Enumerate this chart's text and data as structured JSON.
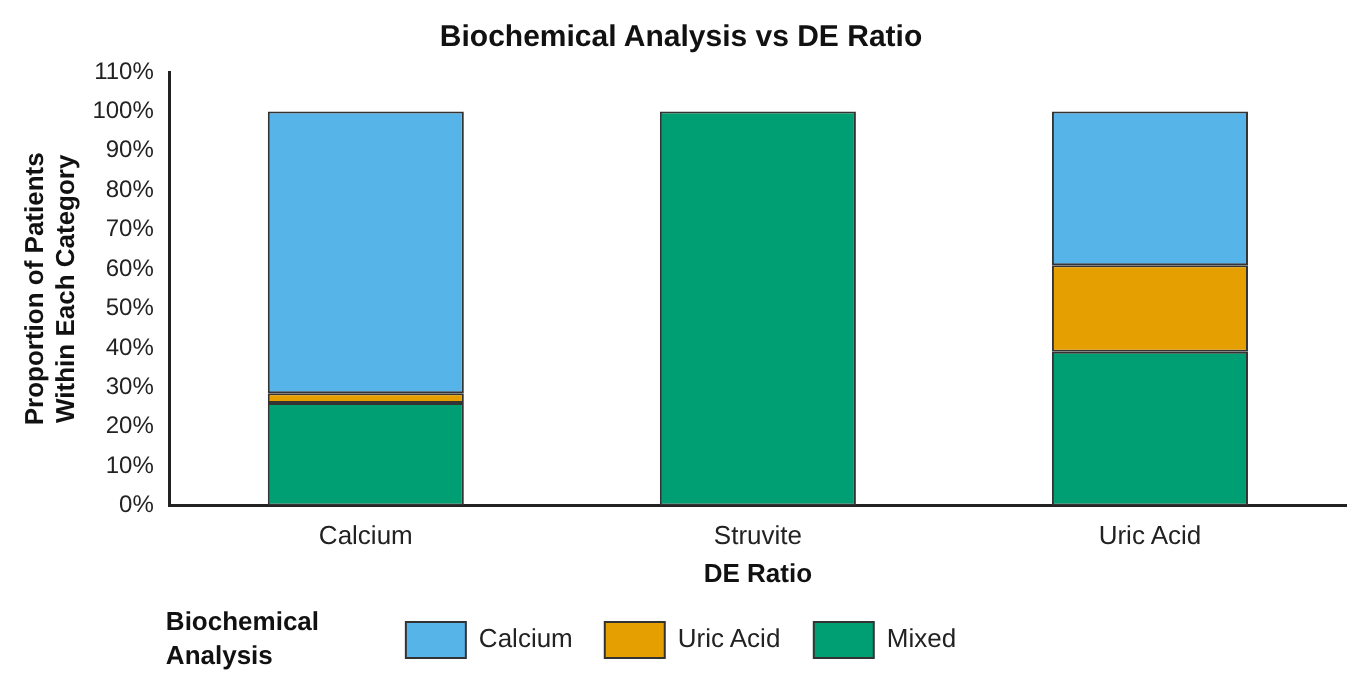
{
  "chart_data": {
    "type": "bar",
    "title": "Biochemical Analysis vs DE Ratio",
    "xlabel": "DE Ratio",
    "ylabel": "Proportion of Patients Within Each Category",
    "legend_title": "Biochemical Analysis",
    "categories": [
      "Calcium",
      "Struvite",
      "Uric Acid"
    ],
    "series": [
      {
        "name": "Mixed",
        "color": "#009e73",
        "values": [
          26,
          100,
          39
        ]
      },
      {
        "name": "Uric Acid",
        "color": "#e69f00",
        "values": [
          2.5,
          0,
          22
        ]
      },
      {
        "name": "Calcium",
        "color": "#56b4e9",
        "values": [
          71.5,
          0,
          39
        ]
      }
    ],
    "stacked": true,
    "ylim": [
      0,
      110
    ],
    "yticks": [
      {
        "value": 0,
        "label": "0%"
      },
      {
        "value": 10,
        "label": "10%"
      },
      {
        "value": 20,
        "label": "20%"
      },
      {
        "value": 30,
        "label": "30%"
      },
      {
        "value": 40,
        "label": "40%"
      },
      {
        "value": 50,
        "label": "50%"
      },
      {
        "value": 60,
        "label": "60%"
      },
      {
        "value": 70,
        "label": "70%"
      },
      {
        "value": 80,
        "label": "80%"
      },
      {
        "value": 90,
        "label": "90%"
      },
      {
        "value": 100,
        "label": "100%"
      },
      {
        "value": 110,
        "label": "110%"
      }
    ],
    "grid": false,
    "legend": "bottom"
  }
}
